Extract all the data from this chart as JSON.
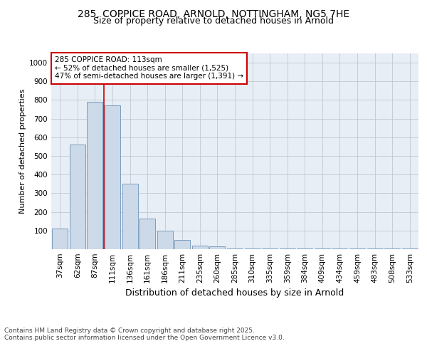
{
  "title_line1": "285, COPPICE ROAD, ARNOLD, NOTTINGHAM, NG5 7HE",
  "title_line2": "Size of property relative to detached houses in Arnold",
  "xlabel": "Distribution of detached houses by size in Arnold",
  "ylabel": "Number of detached properties",
  "categories": [
    "37sqm",
    "62sqm",
    "87sqm",
    "111sqm",
    "136sqm",
    "161sqm",
    "186sqm",
    "211sqm",
    "235sqm",
    "260sqm",
    "285sqm",
    "310sqm",
    "335sqm",
    "359sqm",
    "384sqm",
    "409sqm",
    "434sqm",
    "459sqm",
    "483sqm",
    "508sqm",
    "533sqm"
  ],
  "values": [
    110,
    560,
    790,
    770,
    350,
    165,
    100,
    50,
    20,
    15,
    5,
    5,
    3,
    2,
    2,
    2,
    2,
    2,
    2,
    2,
    2
  ],
  "bar_color": "#ccd9e8",
  "bar_edge_color": "#7a9dc0",
  "background_color": "#e8eef5",
  "grid_color": "#c0c8d5",
  "red_line_x": 3,
  "annotation_line1": "285 COPPICE ROAD: 113sqm",
  "annotation_line2": "← 52% of detached houses are smaller (1,525)",
  "annotation_line3": "47% of semi-detached houses are larger (1,391) →",
  "annotation_box_color": "#ffffff",
  "annotation_box_edge": "#cc0000",
  "ylim": [
    0,
    1050
  ],
  "yticks": [
    0,
    100,
    200,
    300,
    400,
    500,
    600,
    700,
    800,
    900,
    1000
  ],
  "footer_text": "Contains HM Land Registry data © Crown copyright and database right 2025.\nContains public sector information licensed under the Open Government Licence v3.0.",
  "red_line_color": "#cc0000",
  "title1_fontsize": 10,
  "title2_fontsize": 9,
  "axis_label_fontsize": 9,
  "tick_fontsize": 7.5,
  "ylabel_fontsize": 8
}
